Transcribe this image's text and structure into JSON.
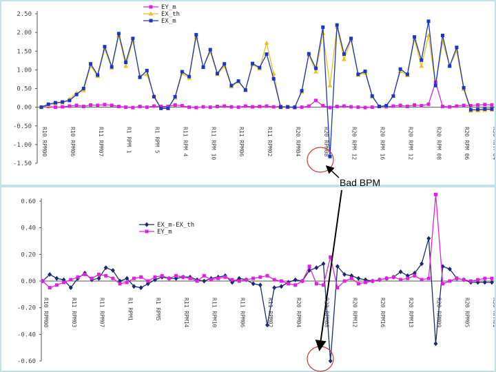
{
  "annotation": {
    "text": "Bad BPM",
    "color": "#cc3333"
  },
  "chart_data": [
    {
      "type": "line",
      "title": "",
      "ylim": [
        -1.5,
        2.5
      ],
      "yticks": [
        "-1.50",
        "-1.00",
        "-0.50",
        "0.00",
        "0.50",
        "1.00",
        "1.50",
        "2.00",
        "2.50"
      ],
      "legend": "top-center",
      "category_labels": [
        "R10 RPM00",
        "R10 RPM06",
        "R11 RPM07",
        "R1 RPM 1",
        "R1 RPM 5",
        "R11 RPM 4",
        "R11 RPM 10",
        "R11 RPM06",
        "R11 RPM02",
        "R20 RPM04",
        "R20 RPM08",
        "R20 RPM 12",
        "R20 RPM 16",
        "R20 RPM 12",
        "R20 RPM 08",
        "R20 RPM 06",
        "R30 RPM 04"
      ],
      "series": [
        {
          "name": "EY_m",
          "color": "#e020e0",
          "marker": "square",
          "values": [
            0.0,
            0.02,
            0.0,
            0.01,
            0.03,
            0.05,
            0.02,
            0.06,
            0.05,
            0.07,
            0.05,
            0.02,
            0.0,
            -0.01,
            0.02,
            0.0,
            0.03,
            0.02,
            0.02,
            0.06,
            0.04,
            0.0,
            -0.01,
            0.01,
            0.0,
            0.02,
            0.03,
            0.01,
            0.0,
            0.03,
            0.01,
            0.02,
            0.03,
            0.01,
            0.02,
            0.0,
            -0.01,
            0.0,
            0.03,
            0.18,
            0.04,
            -0.01,
            0.02,
            0.03,
            0.01,
            0.0,
            -0.01,
            0.0,
            0.02,
            0.01,
            0.03,
            0.05,
            0.02,
            0.06,
            0.04,
            0.08,
            0.67,
            0.02,
            0.01,
            0.03,
            0.05,
            0.04,
            0.06,
            0.07,
            0.06
          ]
        },
        {
          "name": "EX_th",
          "color": "#e8c020",
          "marker": "triangle",
          "values": [
            0.0,
            0.05,
            0.1,
            0.12,
            0.22,
            0.38,
            0.45,
            1.1,
            0.83,
            1.55,
            1.05,
            1.92,
            1.1,
            1.78,
            0.85,
            0.88,
            0.32,
            -0.03,
            -0.03,
            0.25,
            0.9,
            0.78,
            1.88,
            1.07,
            1.48,
            0.88,
            1.1,
            0.55,
            0.68,
            0.45,
            1.14,
            1.03,
            1.72,
            0.9,
            0.0,
            0.01,
            0.0,
            0.41,
            1.4,
            0.95,
            1.98,
            0.58,
            2.15,
            1.28,
            1.8,
            0.86,
            0.92,
            0.28,
            0.02,
            0.03,
            0.3,
            0.96,
            0.85,
            1.82,
            1.1,
            1.92,
            0.58,
            1.75,
            1.1,
            1.5,
            0.48,
            -0.1,
            -0.09,
            -0.08,
            -0.07
          ]
        },
        {
          "name": "EX_m",
          "color": "#1a35c8",
          "marker": "square",
          "values": [
            0.0,
            0.08,
            0.12,
            0.14,
            0.18,
            0.34,
            0.5,
            1.16,
            0.86,
            1.62,
            1.08,
            1.97,
            1.2,
            1.84,
            0.8,
            0.98,
            0.28,
            -0.03,
            -0.03,
            0.28,
            0.95,
            0.82,
            1.94,
            1.07,
            1.54,
            0.9,
            1.16,
            0.58,
            0.7,
            0.46,
            1.17,
            1.06,
            1.42,
            0.76,
            0.0,
            0.01,
            0.0,
            0.44,
            1.43,
            1.04,
            2.14,
            -1.32,
            2.2,
            1.42,
            1.84,
            0.88,
            0.96,
            0.3,
            0.02,
            0.04,
            0.3,
            1.02,
            0.88,
            1.88,
            1.26,
            2.3,
            0.58,
            1.92,
            1.1,
            1.6,
            0.52,
            -0.07,
            -0.06,
            -0.05,
            -0.05
          ]
        }
      ]
    },
    {
      "type": "line",
      "title": "",
      "ylim": [
        -0.6,
        0.6
      ],
      "yticks": [
        "-0.60",
        "-0.40",
        "-0.20",
        "0.00",
        "0.20",
        "0.40",
        "0.60"
      ],
      "legend": "top-center",
      "category_labels": [
        "R10 RPM00",
        "R11 RPM03",
        "R11 RPM07",
        "R1 RPM1",
        "R1 RPM5",
        "R11 RPM14",
        "R11 RPM10",
        "R11 RPM06",
        "R11 RPM02",
        "R20 RPM04",
        "R20 RPM08",
        "R20 RPM12",
        "R20 RPM16",
        "R20 RPM13",
        "R20 RPM09",
        "R20 RPM05",
        "R30 RPM01"
      ],
      "series": [
        {
          "name": "EX_m-EX_th",
          "color": "#1a2a70",
          "marker": "diamond",
          "values": [
            0.0,
            0.05,
            0.02,
            0.01,
            -0.05,
            0.02,
            0.06,
            0.01,
            0.02,
            0.1,
            0.08,
            0.0,
            0.02,
            -0.04,
            -0.05,
            -0.02,
            0.01,
            0.03,
            0.02,
            0.02,
            0.03,
            0.03,
            0.01,
            0.0,
            0.02,
            0.03,
            0.04,
            -0.01,
            0.02,
            0.01,
            -0.02,
            -0.03,
            -0.33,
            -0.05,
            -0.04,
            -0.01,
            0.01,
            0.0,
            0.08,
            0.1,
            0.13,
            -0.6,
            0.11,
            0.05,
            0.04,
            0.02,
            0.01,
            0.0,
            0.01,
            0.02,
            0.03,
            0.07,
            0.04,
            0.06,
            0.13,
            0.32,
            -0.47,
            0.11,
            0.09,
            0.02,
            0.01,
            -0.01,
            -0.01,
            -0.01,
            -0.01
          ]
        },
        {
          "name": "EY_m",
          "color": "#e020e0",
          "marker": "square",
          "values": [
            0.0,
            -0.05,
            -0.03,
            -0.01,
            0.01,
            0.03,
            0.05,
            0.02,
            0.05,
            0.04,
            0.02,
            -0.02,
            -0.01,
            0.02,
            0.03,
            0.0,
            0.03,
            0.04,
            0.02,
            0.04,
            0.03,
            0.02,
            0.0,
            0.04,
            0.01,
            0.02,
            0.03,
            0.01,
            0.0,
            0.01,
            0.02,
            0.03,
            0.04,
            0.01,
            0.0,
            -0.02,
            -0.03,
            0.0,
            0.11,
            -0.02,
            -0.03,
            0.18,
            -0.05,
            0.0,
            0.02,
            -0.02,
            -0.01,
            0.0,
            0.01,
            0.02,
            0.03,
            0.01,
            0.02,
            0.04,
            0.01,
            0.02,
            0.65,
            -0.02,
            0.0,
            0.02,
            0.01,
            0.0,
            0.01,
            0.02,
            0.02
          ]
        }
      ]
    }
  ]
}
